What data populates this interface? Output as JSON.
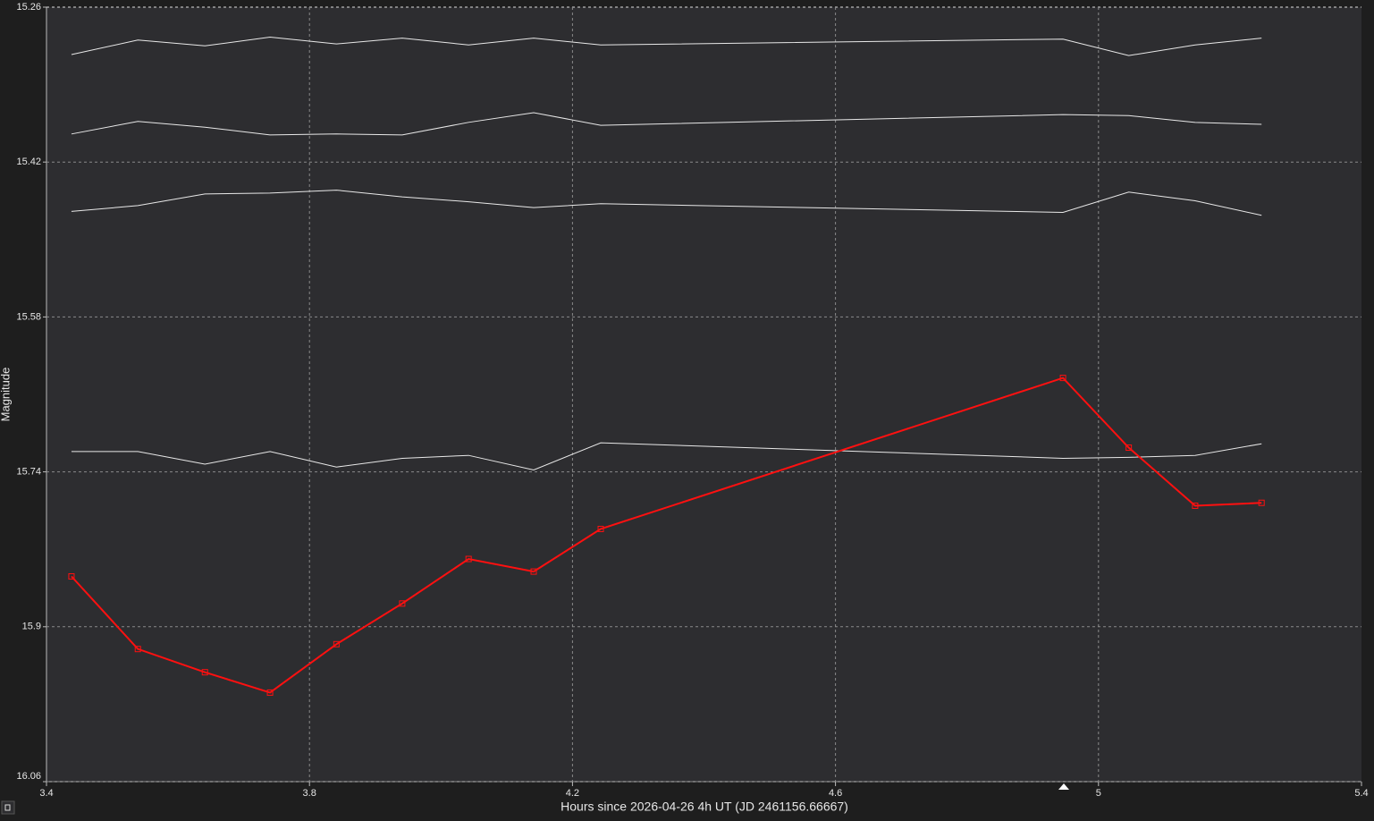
{
  "chart_data": {
    "type": "line",
    "x_label": "Hours since 2026-04-26 4h UT (JD 2461156.66667)",
    "y_label": "Magnitude",
    "x": [
      3.438,
      3.539,
      3.641,
      3.74,
      3.841,
      3.941,
      4.042,
      4.141,
      4.243,
      4.946,
      5.046,
      5.147,
      5.248
    ],
    "series": [
      {
        "color": "#ff1010",
        "markers": true,
        "values": [
          15.848,
          15.923,
          15.947,
          15.968,
          15.918,
          15.876,
          15.83,
          15.843,
          15.799,
          15.643,
          15.715,
          15.775,
          15.772
        ]
      },
      {
        "color": "#e8e8e8",
        "markers": false,
        "values": [
          15.309,
          15.294,
          15.3,
          15.291,
          15.298,
          15.292,
          15.299,
          15.292,
          15.299,
          15.293,
          15.31,
          15.299,
          15.292
        ]
      },
      {
        "color": "#e8e8e8",
        "markers": false,
        "values": [
          15.391,
          15.378,
          15.384,
          15.392,
          15.391,
          15.392,
          15.379,
          15.369,
          15.382,
          15.371,
          15.372,
          15.379,
          15.381
        ]
      },
      {
        "color": "#e8e8e8",
        "markers": false,
        "values": [
          15.471,
          15.465,
          15.453,
          15.452,
          15.449,
          15.456,
          15.461,
          15.467,
          15.463,
          15.472,
          15.451,
          15.46,
          15.475
        ]
      },
      {
        "color": "#e8e8e8",
        "markers": false,
        "values": [
          15.719,
          15.719,
          15.732,
          15.719,
          15.735,
          15.726,
          15.723,
          15.738,
          15.71,
          15.726,
          15.725,
          15.723,
          15.711
        ]
      }
    ],
    "xlim": [
      3.4,
      5.4
    ],
    "xticks": [
      3.4,
      3.8,
      4.2,
      4.6,
      5,
      5.4
    ],
    "ylim": [
      15.26,
      16.06
    ],
    "yticks": [
      15.26,
      15.42,
      15.58,
      15.74,
      15.9,
      16.06
    ],
    "y_inverted": true,
    "grid": true
  }
}
